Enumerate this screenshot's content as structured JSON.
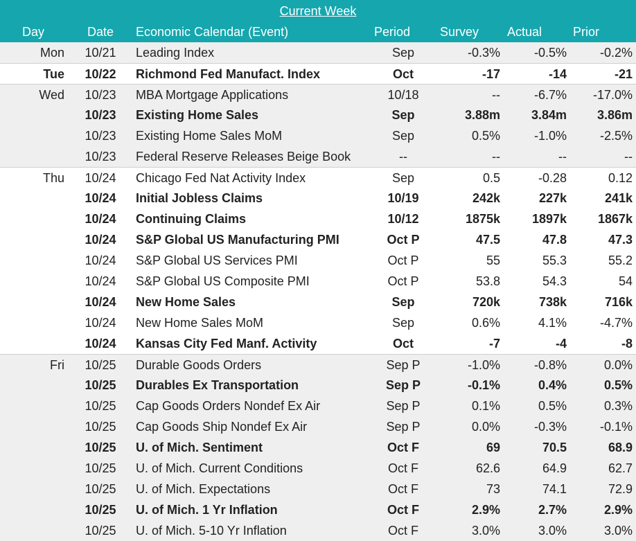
{
  "table": {
    "title": "Current Week",
    "columns": [
      "Day",
      "Date",
      "Economic Calendar (Event)",
      "Period",
      "Survey",
      "Actual",
      "Prior"
    ],
    "rows": [
      {
        "day": "Mon",
        "date": "10/21",
        "event": "Leading Index",
        "period": "Sep",
        "survey": "-0.3%",
        "actual": "-0.5%",
        "prior": "-0.2%",
        "bold": false
      },
      {
        "day": "Tue",
        "date": "10/22",
        "event": "Richmond Fed Manufact. Index",
        "period": "Oct",
        "survey": "-17",
        "actual": "-14",
        "prior": "-21",
        "bold": true
      },
      {
        "day": "Wed",
        "date": "10/23",
        "event": "MBA Mortgage Applications",
        "period": "10/18",
        "survey": "--",
        "actual": "-6.7%",
        "prior": "-17.0%",
        "bold": false
      },
      {
        "date": "10/23",
        "event": "Existing Home Sales",
        "period": "Sep",
        "survey": "3.88m",
        "actual": "3.84m",
        "prior": "3.86m",
        "bold": true
      },
      {
        "date": "10/23",
        "event": "Existing Home Sales MoM",
        "period": "Sep",
        "survey": "0.5%",
        "actual": "-1.0%",
        "prior": "-2.5%",
        "bold": false
      },
      {
        "date": "10/23",
        "event": "Federal Reserve Releases Beige Book",
        "period": "--",
        "survey": "--",
        "actual": "--",
        "prior": "--",
        "bold": false
      },
      {
        "day": "Thu",
        "date": "10/24",
        "event": "Chicago Fed Nat Activity Index",
        "period": "Sep",
        "survey": "0.5",
        "actual": "-0.28",
        "prior": "0.12",
        "bold": false
      },
      {
        "date": "10/24",
        "event": "Initial Jobless Claims",
        "period": "10/19",
        "survey": "242k",
        "actual": "227k",
        "prior": "241k",
        "bold": true
      },
      {
        "date": "10/24",
        "event": "Continuing Claims",
        "period": "10/12",
        "survey": "1875k",
        "actual": "1897k",
        "prior": "1867k",
        "bold": true
      },
      {
        "date": "10/24",
        "event": "S&P Global US Manufacturing PMI",
        "period": "Oct P",
        "survey": "47.5",
        "actual": "47.8",
        "prior": "47.3",
        "bold": true
      },
      {
        "date": "10/24",
        "event": "S&P Global US Services PMI",
        "period": "Oct P",
        "survey": "55",
        "actual": "55.3",
        "prior": "55.2",
        "bold": false
      },
      {
        "date": "10/24",
        "event": "S&P Global US Composite PMI",
        "period": "Oct P",
        "survey": "53.8",
        "actual": "54.3",
        "prior": "54",
        "bold": false
      },
      {
        "date": "10/24",
        "event": "New Home Sales",
        "period": "Sep",
        "survey": "720k",
        "actual": "738k",
        "prior": "716k",
        "bold": true
      },
      {
        "date": "10/24",
        "event": "New Home Sales MoM",
        "period": "Sep",
        "survey": "0.6%",
        "actual": "4.1%",
        "prior": "-4.7%",
        "bold": false
      },
      {
        "date": "10/24",
        "event": "Kansas City Fed Manf. Activity",
        "period": "Oct",
        "survey": "-7",
        "actual": "-4",
        "prior": "-8",
        "bold": true
      },
      {
        "day": "Fri",
        "date": "10/25",
        "event": "Durable Goods Orders",
        "period": "Sep P",
        "survey": "-1.0%",
        "actual": "-0.8%",
        "prior": "0.0%",
        "bold": false
      },
      {
        "date": "10/25",
        "event": "Durables Ex Transportation",
        "period": "Sep P",
        "survey": "-0.1%",
        "actual": "0.4%",
        "prior": "0.5%",
        "bold": true
      },
      {
        "date": "10/25",
        "event": "Cap Goods Orders Nondef Ex Air",
        "period": "Sep P",
        "survey": "0.1%",
        "actual": "0.5%",
        "prior": "0.3%",
        "bold": false
      },
      {
        "date": "10/25",
        "event": "Cap Goods Ship Nondef Ex Air",
        "period": "Sep P",
        "survey": "0.0%",
        "actual": "-0.3%",
        "prior": "-0.1%",
        "bold": false
      },
      {
        "date": "10/25",
        "event": "U. of Mich. Sentiment",
        "period": "Oct F",
        "survey": "69",
        "actual": "70.5",
        "prior": "68.9",
        "bold": true
      },
      {
        "date": "10/25",
        "event": "U. of Mich. Current Conditions",
        "period": "Oct F",
        "survey": "62.6",
        "actual": "64.9",
        "prior": "62.7",
        "bold": false
      },
      {
        "date": "10/25",
        "event": "U. of Mich. Expectations",
        "period": "Oct F",
        "survey": "73",
        "actual": "74.1",
        "prior": "72.9",
        "bold": false
      },
      {
        "date": "10/25",
        "event": "U. of Mich. 1 Yr Inflation",
        "period": "Oct F",
        "survey": "2.9%",
        "actual": "2.7%",
        "prior": "2.9%",
        "bold": true
      },
      {
        "date": "10/25",
        "event": "U. of Mich. 5-10 Yr Inflation",
        "period": "Oct F",
        "survey": "3.0%",
        "actual": "3.0%",
        "prior": "3.0%",
        "bold": false
      }
    ]
  }
}
